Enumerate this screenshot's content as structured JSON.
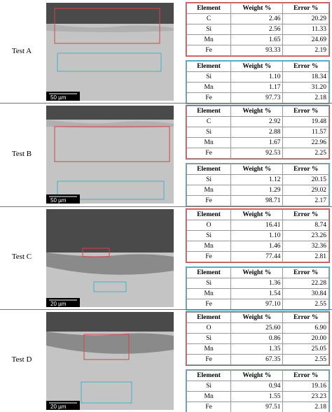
{
  "tests": [
    {
      "label": "Test A",
      "scale_bar": "50 µm",
      "table_red": {
        "header": [
          "Element",
          "Weight %",
          "Error %"
        ],
        "rows": [
          [
            "C",
            "2.46",
            "20.29"
          ],
          [
            "Si",
            "2.56",
            "11.33"
          ],
          [
            "Mn",
            "1.65",
            "24.69"
          ],
          [
            "Fe",
            "93.33",
            "2.19"
          ]
        ]
      },
      "table_blue": {
        "header": [
          "Element",
          "Weight %",
          "Error %"
        ],
        "rows": [
          [
            "Si",
            "1.10",
            "18.34"
          ],
          [
            "Mn",
            "1.17",
            "31.20"
          ],
          [
            "Fe",
            "97.73",
            "2.18"
          ]
        ]
      }
    },
    {
      "label": "Test B",
      "scale_bar": "50 µm",
      "table_red": {
        "header": [
          "Element",
          "Weight %",
          "Error %"
        ],
        "rows": [
          [
            "C",
            "2.92",
            "19.48"
          ],
          [
            "Si",
            "2.88",
            "11.57"
          ],
          [
            "Mn",
            "1.67",
            "22.96"
          ],
          [
            "Fe",
            "92.53",
            "2.25"
          ]
        ]
      },
      "table_blue": {
        "header": [
          "Element",
          "Weight %",
          "Error %"
        ],
        "rows": [
          [
            "Si",
            "1.12",
            "20.15"
          ],
          [
            "Mn",
            "1.29",
            "29.02"
          ],
          [
            "Fe",
            "98.71",
            "2.17"
          ]
        ]
      }
    },
    {
      "label": "Test C",
      "scale_bar": "20 µm",
      "table_red": {
        "header": [
          "Element",
          "Weight %",
          "Error %"
        ],
        "rows": [
          [
            "O",
            "16.41",
            "8.74"
          ],
          [
            "Si",
            "1.10",
            "23.26"
          ],
          [
            "Mn",
            "1.46",
            "32.36"
          ],
          [
            "Fe",
            "77.44",
            "2.81"
          ]
        ]
      },
      "table_blue": {
        "header": [
          "Element",
          "Weight %",
          "Error %"
        ],
        "rows": [
          [
            "Si",
            "1.36",
            "22.28"
          ],
          [
            "Mn",
            "1.54",
            "30.84"
          ],
          [
            "Fe",
            "97.10",
            "2.55"
          ]
        ]
      }
    },
    {
      "label": "Test D",
      "scale_bar": "20 µm",
      "table_red": {
        "header": [
          "Element",
          "Weight %",
          "Error %"
        ],
        "rows": [
          [
            "O",
            "25.60",
            "6.90"
          ],
          [
            "Si",
            "0.86",
            "20.00"
          ],
          [
            "Mn",
            "1.35",
            "25.05"
          ],
          [
            "Fe",
            "67.35",
            "2.55"
          ]
        ]
      },
      "table_blue": {
        "header": [
          "Element",
          "Weight %",
          "Error %"
        ],
        "rows": [
          [
            "Si",
            "0.94",
            "19.16"
          ],
          [
            "Mn",
            "1.55",
            "23.23"
          ],
          [
            "Fe",
            "97.51",
            "2.18"
          ]
        ]
      }
    }
  ]
}
